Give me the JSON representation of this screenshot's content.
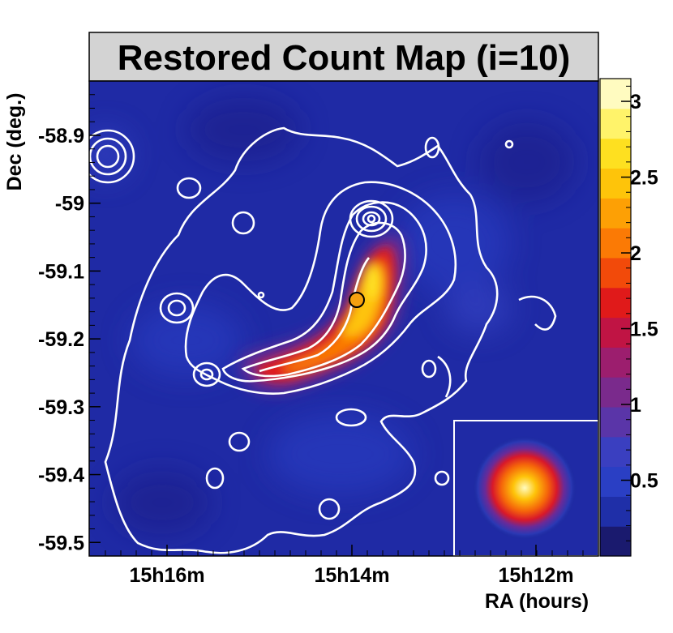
{
  "chart_data": {
    "type": "heatmap",
    "title": "Restored Count Map (i=10)",
    "xlabel": "RA (hours)",
    "ylabel": "Dec (deg.)",
    "x_ticks": [
      "15h16m",
      "15h14m",
      "15h12m"
    ],
    "y_ticks": [
      "-58.9",
      "-59",
      "-59.1",
      "-59.2",
      "-59.3",
      "-59.4",
      "-59.5"
    ],
    "y_tick_values": [
      -58.9,
      -59.0,
      -59.1,
      -59.2,
      -59.3,
      -59.4,
      -59.5
    ],
    "ylim": [
      -59.52,
      -58.82
    ],
    "colorbar": {
      "ticks": [
        "3",
        "2.5",
        "2",
        "1.5",
        "1",
        "0.5"
      ],
      "tick_values": [
        3,
        2.5,
        2,
        1.5,
        1,
        0.5
      ],
      "range": [
        0,
        3.15
      ]
    },
    "colormap": [
      "#1a1a6e",
      "#1f2fa8",
      "#2a3fc4",
      "#3a3fc0",
      "#5a35a8",
      "#7a2a8c",
      "#9c1e6e",
      "#c01444",
      "#e01a1a",
      "#f24a0a",
      "#fb7a05",
      "#fda005",
      "#fec40a",
      "#fee020",
      "#fff36a",
      "#fffbc0"
    ],
    "peak_value": 2.6,
    "inset": "point spread function",
    "grid": false
  }
}
